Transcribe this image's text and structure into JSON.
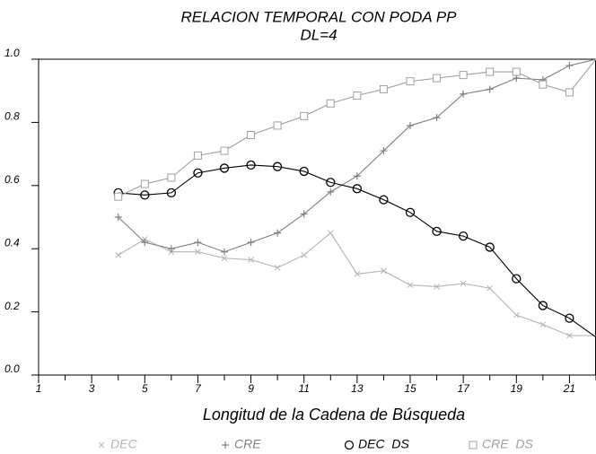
{
  "chart_data": {
    "type": "line",
    "title": "RELACION TEMPORAL CON PODA PP",
    "subtitle": "DL=4",
    "xlabel": "Longitud de la Cadena de Búsqueda",
    "x": [
      4,
      5,
      6,
      7,
      8,
      9,
      10,
      11,
      12,
      13,
      14,
      15,
      16,
      17,
      18,
      19,
      20,
      21,
      22
    ],
    "series": [
      {
        "name": "DEC",
        "color": "#b4b4b4",
        "marker": "x",
        "values": [
          0.38,
          0.43,
          0.39,
          0.39,
          0.37,
          0.365,
          0.34,
          0.38,
          0.45,
          0.32,
          0.33,
          0.285,
          0.28,
          0.29,
          0.275,
          0.19,
          0.16,
          0.125,
          0.125
        ]
      },
      {
        "name": "CRE",
        "color": "#808080",
        "marker": "+",
        "values": [
          0.5,
          0.42,
          0.4,
          0.42,
          0.39,
          0.42,
          0.45,
          0.51,
          0.58,
          0.63,
          0.71,
          0.79,
          0.815,
          0.89,
          0.905,
          0.94,
          0.935,
          0.98,
          1.0
        ]
      },
      {
        "name": "DEC  DS",
        "color": "#000000",
        "marker": "o",
        "values": [
          0.577,
          0.57,
          0.577,
          0.64,
          0.655,
          0.665,
          0.66,
          0.645,
          0.61,
          0.59,
          0.555,
          0.515,
          0.455,
          0.44,
          0.405,
          0.305,
          0.22,
          0.18,
          0.12
        ]
      },
      {
        "name": "CRE  DS",
        "color": "#a0a0a0",
        "marker": "s",
        "values": [
          0.565,
          0.605,
          0.625,
          0.695,
          0.71,
          0.76,
          0.79,
          0.82,
          0.86,
          0.885,
          0.905,
          0.93,
          0.94,
          0.95,
          0.96,
          0.96,
          0.92,
          0.895,
          1.0
        ]
      }
    ],
    "xlim": [
      1,
      22
    ],
    "xticks": [
      1,
      3,
      5,
      7,
      9,
      11,
      13,
      15,
      17,
      19,
      21
    ],
    "xminor_ticks": [
      2,
      4,
      6,
      8,
      10,
      12,
      14,
      16,
      18,
      20,
      22
    ],
    "ylim": [
      0,
      1
    ],
    "yticks": [
      {
        "value": 0,
        "label": "0.0"
      },
      {
        "value": 0.2,
        "label": "0.2"
      },
      {
        "value": 0.4,
        "label": "0.4"
      },
      {
        "value": 0.6,
        "label": "0.6"
      },
      {
        "value": 0.8,
        "label": "0.8"
      },
      {
        "value": 1,
        "label": "1.0"
      }
    ],
    "legend": "bottom"
  }
}
